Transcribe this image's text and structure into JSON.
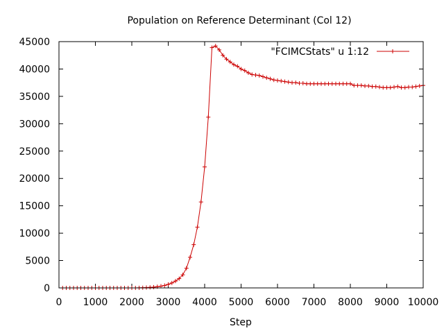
{
  "chart_data": {
    "type": "line",
    "title": "Population on Reference Determinant (Col 12)",
    "xlabel": "Step",
    "ylabel": "",
    "xlim": [
      0,
      10000
    ],
    "ylim": [
      0,
      45000
    ],
    "xticks": [
      0,
      1000,
      2000,
      3000,
      4000,
      5000,
      6000,
      7000,
      8000,
      9000,
      10000
    ],
    "yticks": [
      0,
      5000,
      10000,
      15000,
      20000,
      25000,
      30000,
      35000,
      40000,
      45000
    ],
    "grid": false,
    "legend_position": "top-right",
    "marker": "plus",
    "series": [
      {
        "name": "\"FCIMCStats\" u 1:12",
        "color": "#cc0000",
        "x": [
          100,
          200,
          300,
          400,
          500,
          600,
          700,
          800,
          900,
          1000,
          1100,
          1200,
          1300,
          1400,
          1500,
          1600,
          1700,
          1800,
          1900,
          2000,
          2100,
          2200,
          2300,
          2400,
          2500,
          2600,
          2700,
          2800,
          2900,
          3000,
          3100,
          3200,
          3300,
          3400,
          3500,
          3600,
          3700,
          3800,
          3900,
          4000,
          4100,
          4200,
          4300,
          4400,
          4500,
          4600,
          4700,
          4800,
          4900,
          5000,
          5100,
          5200,
          5300,
          5400,
          5500,
          5600,
          5700,
          5800,
          5900,
          6000,
          6100,
          6200,
          6300,
          6400,
          6500,
          6600,
          6700,
          6800,
          6900,
          7000,
          7100,
          7200,
          7300,
          7400,
          7500,
          7600,
          7700,
          7800,
          7900,
          8000,
          8100,
          8200,
          8300,
          8400,
          8500,
          8600,
          8700,
          8800,
          8900,
          9000,
          9100,
          9200,
          9300,
          9400,
          9500,
          9600,
          9700,
          9800,
          9900,
          10000
        ],
        "y": [
          0,
          0,
          0,
          0,
          0,
          0,
          0,
          0,
          0,
          0,
          0,
          0,
          0,
          0,
          0,
          0,
          0,
          0,
          0,
          0,
          0,
          10,
          30,
          60,
          100,
          150,
          220,
          320,
          450,
          650,
          900,
          1250,
          1700,
          2400,
          3600,
          5600,
          7900,
          11100,
          15700,
          22100,
          31200,
          43900,
          44200,
          43500,
          42500,
          41800,
          41300,
          40800,
          40500,
          40000,
          39700,
          39300,
          39000,
          38900,
          38800,
          38600,
          38400,
          38200,
          38000,
          37900,
          37800,
          37700,
          37600,
          37500,
          37500,
          37400,
          37400,
          37300,
          37300,
          37300,
          37300,
          37300,
          37300,
          37300,
          37300,
          37300,
          37300,
          37300,
          37300,
          37300,
          37000,
          37000,
          37000,
          36900,
          36900,
          36800,
          36800,
          36700,
          36600,
          36600,
          36600,
          36700,
          36800,
          36600,
          36600,
          36700,
          36700,
          36800,
          36900,
          37000
        ]
      }
    ]
  }
}
